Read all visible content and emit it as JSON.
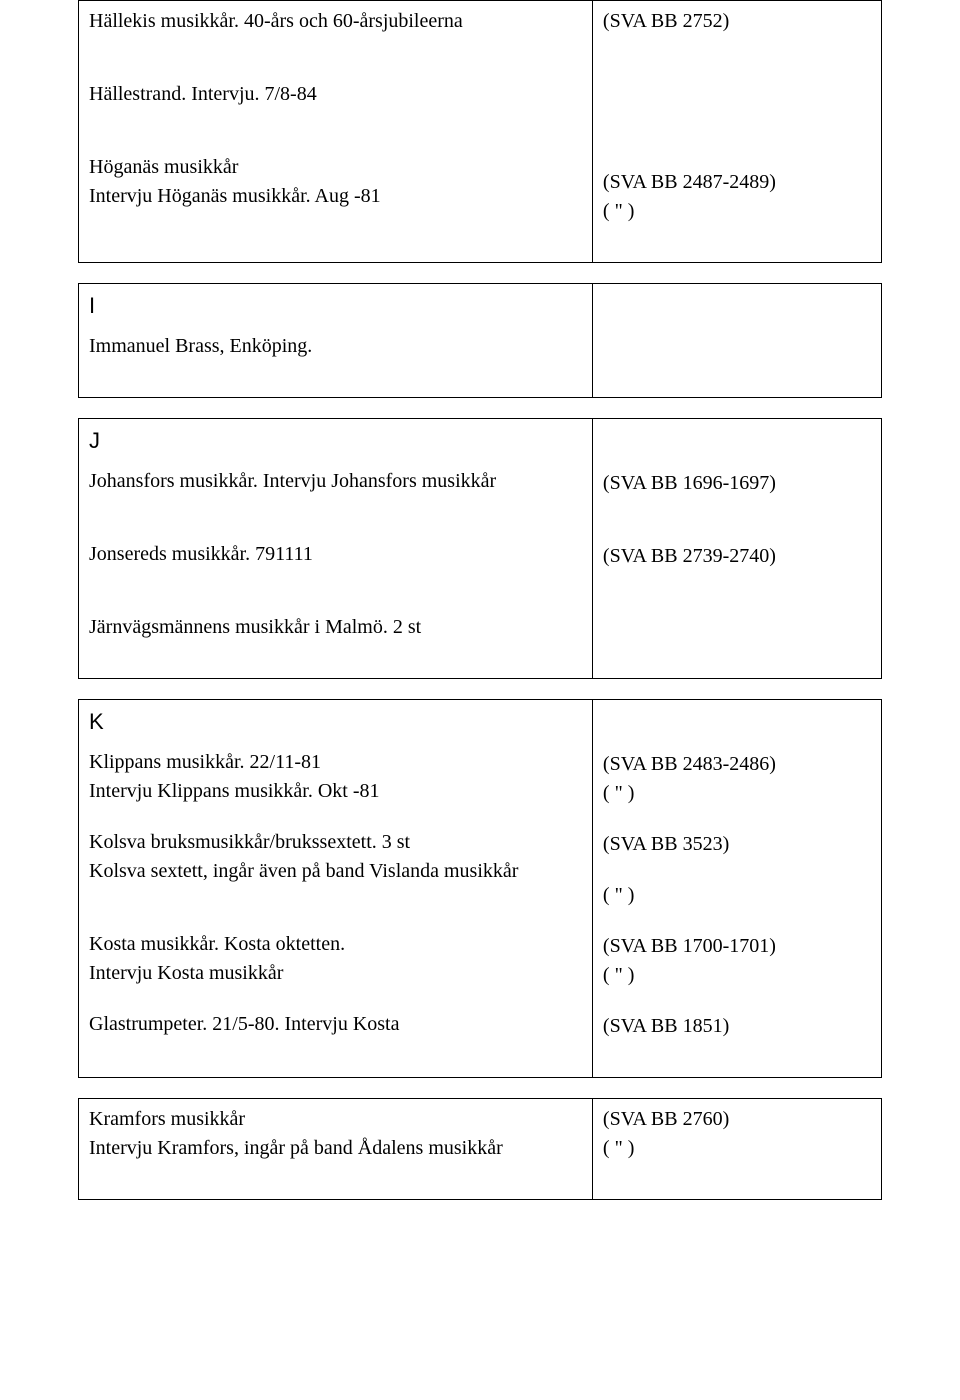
{
  "rows": [
    {
      "left": [
        {
          "text": "Hällekis musikkår. 40-års och 60-årsjubileerna"
        },
        {
          "gap": true
        },
        {
          "gap": true
        },
        {
          "text": "Hällestrand. Intervju. 7/8-84"
        },
        {
          "gap": true
        },
        {
          "gap": true
        },
        {
          "text": "Höganäs musikkår"
        },
        {
          "text": "Intervju Höganäs musikkår. Aug -81"
        }
      ],
      "right": [
        {
          "text": "(SVA BB 2752)"
        },
        {
          "gap": true
        },
        {
          "gap": true
        },
        {
          "gap": true
        },
        {
          "gap": true
        },
        {
          "gap": true
        },
        {
          "gap": true
        },
        {
          "text": "(SVA BB 2487-2489)"
        },
        {
          "text": "( \" )"
        }
      ]
    },
    {
      "left": [
        {
          "text": "I",
          "letter": true
        },
        {
          "text": "Immanuel Brass, Enköping."
        }
      ],
      "right": []
    },
    {
      "left": [
        {
          "text": "J",
          "letter": true
        },
        {
          "text": "Johansfors musikkår. Intervju Johansfors musikkår"
        },
        {
          "gap": true
        },
        {
          "gap": true
        },
        {
          "text": "Jonsereds musikkår. 791111"
        },
        {
          "gap": true
        },
        {
          "gap": true
        },
        {
          "text": "Järnvägsmännens musikkår i Malmö. 2 st"
        }
      ],
      "right": [
        {
          "gap": true
        },
        {
          "gap": true
        },
        {
          "text": "(SVA BB 1696-1697)"
        },
        {
          "gap": true
        },
        {
          "gap": true
        },
        {
          "text": "(SVA BB 2739-2740)"
        }
      ]
    },
    {
      "left": [
        {
          "text": "K",
          "letter": true
        },
        {
          "text": "Klippans musikkår. 22/11-81"
        },
        {
          "text": "Intervju Klippans musikkår. Okt -81"
        },
        {
          "gap": true
        },
        {
          "text": "Kolsva bruksmusikkår/brukssextett. 3 st"
        },
        {
          "text": "Kolsva sextett, ingår även på band Vislanda musikkår"
        },
        {
          "gap": true
        },
        {
          "gap": true
        },
        {
          "text": "Kosta musikkår. Kosta oktetten."
        },
        {
          "text": "Intervju Kosta musikkår"
        },
        {
          "gap": true
        },
        {
          "text": "Glastrumpeter. 21/5-80. Intervju Kosta"
        }
      ],
      "right": [
        {
          "gap": true
        },
        {
          "gap": true
        },
        {
          "text": "(SVA BB 2483-2486)"
        },
        {
          "text": "( \" )"
        },
        {
          "gap": true
        },
        {
          "text": "(SVA BB 3523)"
        },
        {
          "gap": true
        },
        {
          "text": "( \" )"
        },
        {
          "gap": true
        },
        {
          "text": "(SVA BB 1700-1701)"
        },
        {
          "text": "( \" )"
        },
        {
          "gap": true
        },
        {
          "text": "(SVA BB 1851)"
        }
      ]
    },
    {
      "left": [
        {
          "text": "Kramfors musikkår"
        },
        {
          "text": "Intervju Kramfors, ingår på band Ådalens musikkår"
        }
      ],
      "right": [
        {
          "text": "(SVA BB 2760)"
        },
        {
          "text": "( \" )"
        }
      ]
    }
  ]
}
